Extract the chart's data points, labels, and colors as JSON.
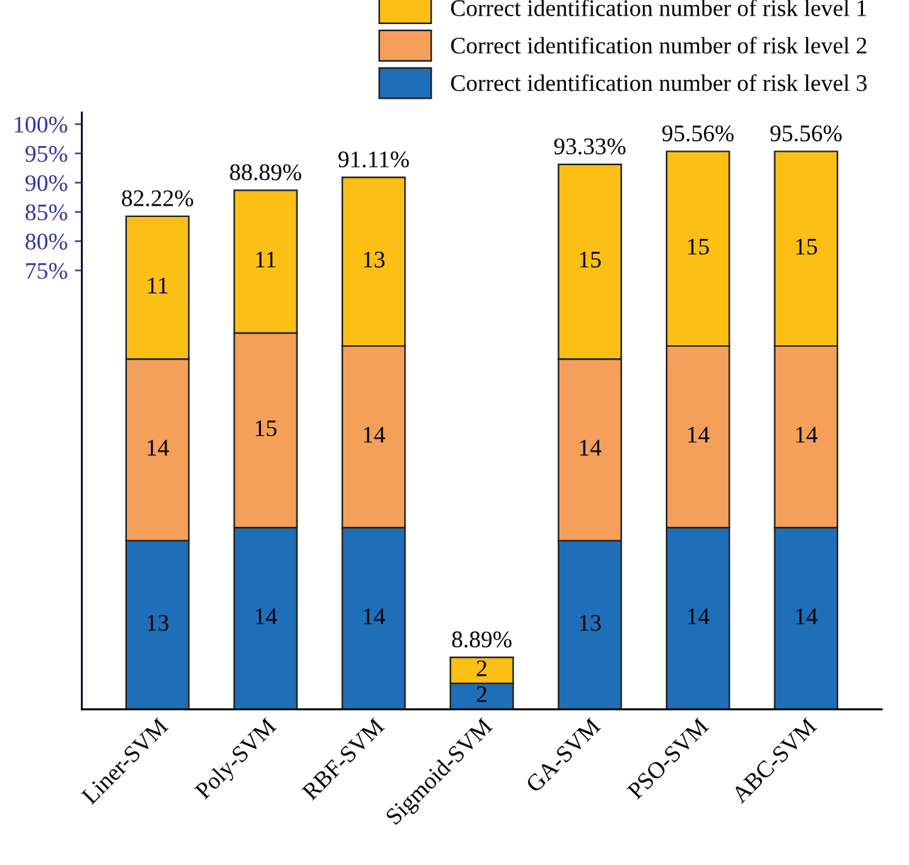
{
  "chart_data": {
    "type": "bar",
    "stacked": true,
    "data_labels": true,
    "categories": [
      "Liner-SVM",
      "Poly-SVM",
      "RBF-SVM",
      "Sigmoid-SVM",
      "GA-SVM",
      "PSO-SVM",
      "ABC-SVM"
    ],
    "series": [
      {
        "name": "Correct identification number of risk level 3",
        "color": "#1f6fb8",
        "axis": "y2",
        "values": [
          13,
          14,
          14,
          2,
          13,
          14,
          14
        ]
      },
      {
        "name": "Correct identification number of risk level 2",
        "color": "#f4a05a",
        "axis": "y2",
        "values": [
          14,
          15,
          14,
          null,
          14,
          14,
          14
        ]
      },
      {
        "name": "Correct identification number of risk level 1",
        "color": "#fbbf16",
        "axis": "y2",
        "values": [
          11,
          11,
          13,
          2,
          15,
          15,
          15
        ]
      }
    ],
    "annotations": [
      "82.22%",
      "88.89%",
      "91.11%",
      "8.89%",
      "93.33%",
      "95.56%",
      "95.56%"
    ],
    "ylim": [
      0,
      102
    ],
    "yticks": [
      {
        "value": 75,
        "label": "75%"
      },
      {
        "value": 80,
        "label": "80%"
      },
      {
        "value": 85,
        "label": "85%"
      },
      {
        "value": 90,
        "label": "90%"
      },
      {
        "value": 95,
        "label": "95%"
      },
      {
        "value": 100,
        "label": "100%"
      }
    ],
    "y2lim": [
      0,
      46
    ],
    "legend": "top right",
    "grid": false
  }
}
